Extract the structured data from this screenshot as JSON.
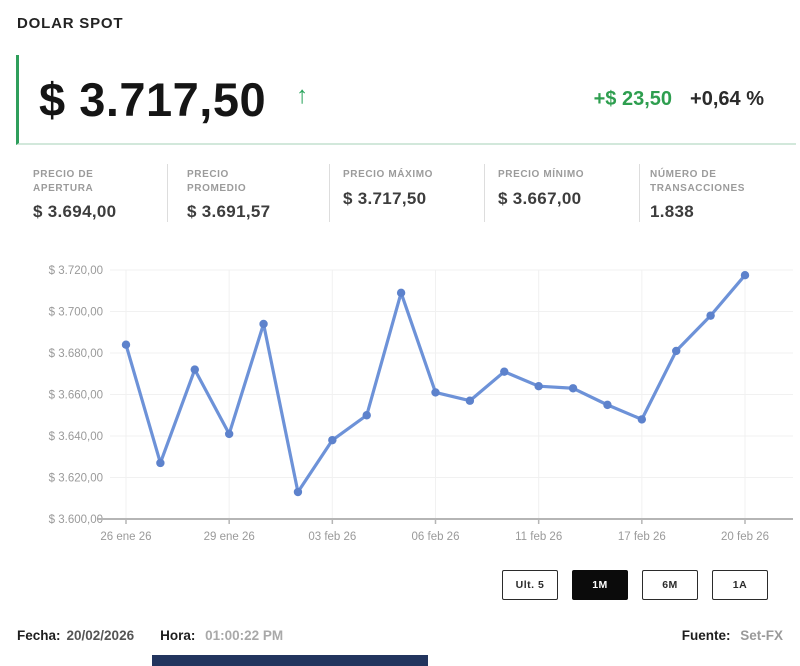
{
  "header": {
    "title": "DOLAR SPOT"
  },
  "quote": {
    "price": "$ 3.717,50",
    "trend_arrow": "↑",
    "change_abs": "+$ 23,50",
    "change_pct": "+0,64 %",
    "accent_green": "#2e9e5b"
  },
  "stats": [
    {
      "label": "PRECIO DE APERTURA",
      "value": "$ 3.694,00"
    },
    {
      "label": "PRECIO PROMEDIO",
      "value": "$ 3.691,57"
    },
    {
      "label": "PRECIO MÁXIMO",
      "value": "$ 3.717,50"
    },
    {
      "label": "PRECIO MÍNIMO",
      "value": "$ 3.667,00"
    },
    {
      "label": "NÚMERO DE TRANSACCIONES",
      "value": "1.838"
    }
  ],
  "chart_data": {
    "type": "line",
    "title": "",
    "xlabel": "",
    "ylabel": "",
    "values": [
      3684,
      3627,
      3672,
      3641,
      3694,
      3613,
      3638,
      3650,
      3709,
      3661,
      3657,
      3671,
      3664,
      3663,
      3655,
      3648,
      3681,
      3698,
      3717.5
    ],
    "x_tick_labels": [
      "26 ene 26",
      "29 ene 26",
      "03 feb 26",
      "06 feb 26",
      "11 feb 26",
      "17 feb 26",
      "20 feb 26"
    ],
    "x_tick_indices": [
      0,
      3,
      6,
      9,
      12,
      15,
      18
    ],
    "y_tick_labels": [
      "$ 3.720,00",
      "$ 3.700,00",
      "$ 3.680,00",
      "$ 3.660,00",
      "$ 3.640,00",
      "$ 3.620,00",
      "$ 3.600,00"
    ],
    "ylim": [
      3600,
      3720
    ],
    "grid": true,
    "legend_position": "none",
    "line_color": "#6d92d8",
    "marker_color": "#5d82cc"
  },
  "range_buttons": [
    {
      "label": "Ult. 5",
      "selected": false
    },
    {
      "label": "1M",
      "selected": true
    },
    {
      "label": "6M",
      "selected": false
    },
    {
      "label": "1A",
      "selected": false
    }
  ],
  "footer": {
    "fecha_label": "Fecha:",
    "fecha_value": "20/02/2026",
    "hora_label": "Hora:",
    "hora_value": "01:00:22 PM",
    "fuente_label": "Fuente:",
    "fuente_value": "Set-FX"
  }
}
